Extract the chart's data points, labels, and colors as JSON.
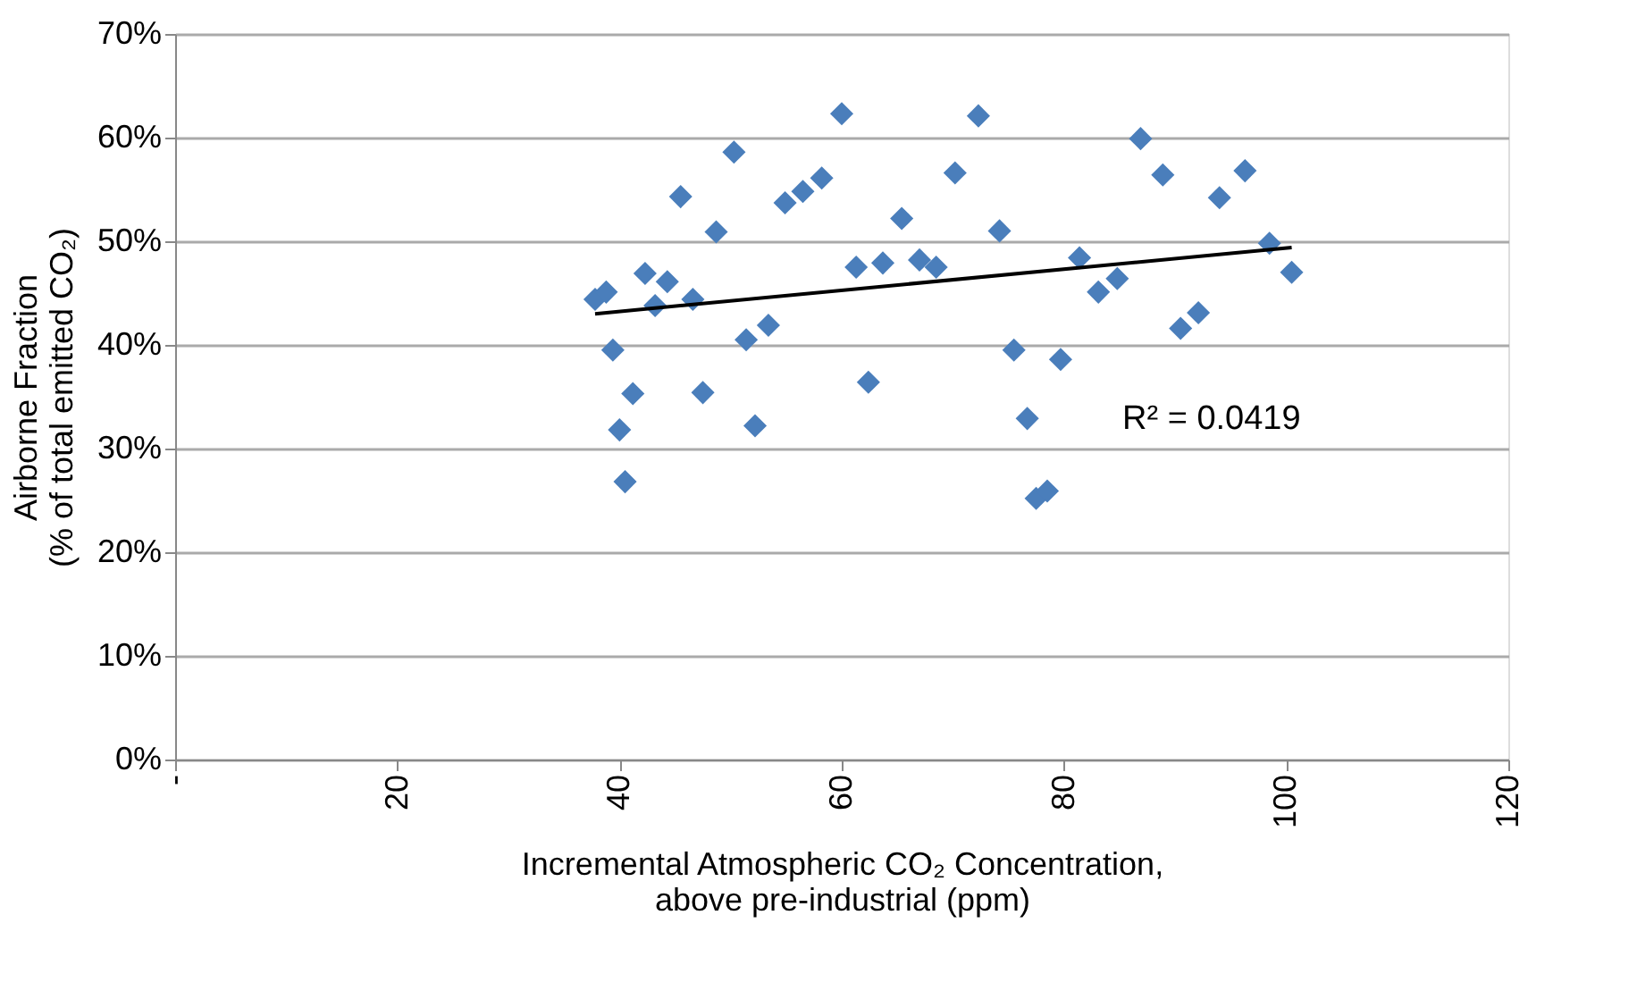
{
  "chart_data": {
    "type": "scatter",
    "xlabel": "Incremental  Atmospheric CO₂ Concentration,\nabove pre-industrial (ppm)",
    "ylabel": "Airborne Fraction\n(% of total emitted CO₂)",
    "annotations": [
      "R² = 0.0419"
    ],
    "xlim": [
      0,
      120
    ],
    "xticks": [
      {
        "value": 0,
        "label": "-"
      },
      20,
      40,
      60,
      80,
      100,
      120
    ],
    "ylim": [
      0,
      70
    ],
    "yticks": [
      {
        "value": 0,
        "label": "0%"
      },
      {
        "value": 10,
        "label": "10%"
      },
      {
        "value": 20,
        "label": "20%"
      },
      {
        "value": 30,
        "label": "30%"
      },
      {
        "value": 40,
        "label": "40%"
      },
      {
        "value": 50,
        "label": "50%"
      },
      {
        "value": 60,
        "label": "60%"
      },
      {
        "value": 70,
        "label": "70%"
      }
    ],
    "grid": "y",
    "series": [
      {
        "color": "#4a7ebb",
        "marker": "diamond",
        "x": [
          37.8,
          38.8,
          39.4,
          41.2,
          40.0,
          40.5,
          42.3,
          43.2,
          44.3,
          45.5,
          46.6,
          47.5,
          48.7,
          50.3,
          51.4,
          52.2,
          53.4,
          54.9,
          56.5,
          58.2,
          60.0,
          61.3,
          62.4,
          63.7,
          65.4,
          67.0,
          68.5,
          70.2,
          72.3,
          74.2,
          75.5,
          76.7,
          77.5,
          78.5,
          79.7,
          81.4,
          83.1,
          84.8,
          86.9,
          88.9,
          90.5,
          92.1,
          94.0,
          96.3,
          98.5,
          100.5
        ],
        "values": [
          44.4,
          45.1,
          39.5,
          35.3,
          31.8,
          26.8,
          46.9,
          43.8,
          46.1,
          54.3,
          44.4,
          35.4,
          50.9,
          58.6,
          40.5,
          32.2,
          41.9,
          53.7,
          54.8,
          56.1,
          62.3,
          47.5,
          36.4,
          47.9,
          52.2,
          48.2,
          47.5,
          56.6,
          62.1,
          51.0,
          39.5,
          32.9,
          25.2,
          25.9,
          38.6,
          48.4,
          45.1,
          46.4,
          59.9,
          56.4,
          41.6,
          43.1,
          54.2,
          56.8,
          49.8,
          47.0
        ]
      },
      {
        "type": "line",
        "color": "#000000",
        "marker": "none",
        "line_style": "solid",
        "x": [
          37.8,
          100.5
        ],
        "values": [
          43.0,
          49.4
        ]
      }
    ]
  }
}
